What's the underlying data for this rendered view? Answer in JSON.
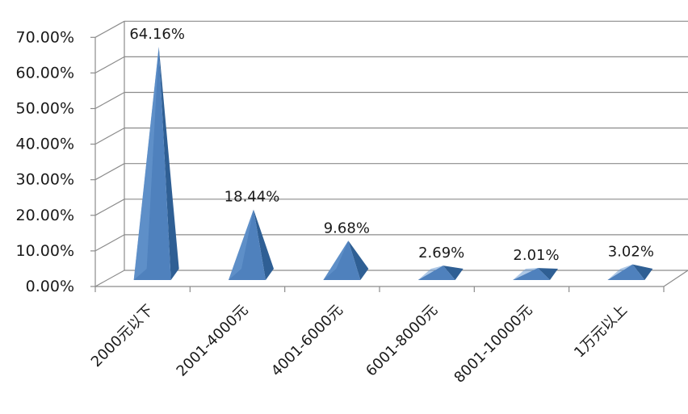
{
  "chart_data": {
    "type": "bar",
    "style": "3d-pyramid",
    "categories": [
      "2000元以下",
      "2001-4000元",
      "4001-6000元",
      "6001-8000元",
      "8001-10000元",
      "1万元以上"
    ],
    "values": [
      64.16,
      18.44,
      9.68,
      2.69,
      2.01,
      3.02
    ],
    "data_labels": [
      "64.16%",
      "18.44%",
      "9.68%",
      "2.69%",
      "2.01%",
      "3.02%"
    ],
    "y_ticks": [
      "0.00%",
      "10.00%",
      "20.00%",
      "30.00%",
      "40.00%",
      "50.00%",
      "60.00%",
      "70.00%"
    ],
    "ylim": [
      0,
      70
    ],
    "grid": true,
    "legend": "none",
    "colors": {
      "bar": "#4f81bd",
      "bar_dark": "#2f5f94",
      "bar_light": "#6b9ad2",
      "grid": "#8c8c8c"
    }
  }
}
